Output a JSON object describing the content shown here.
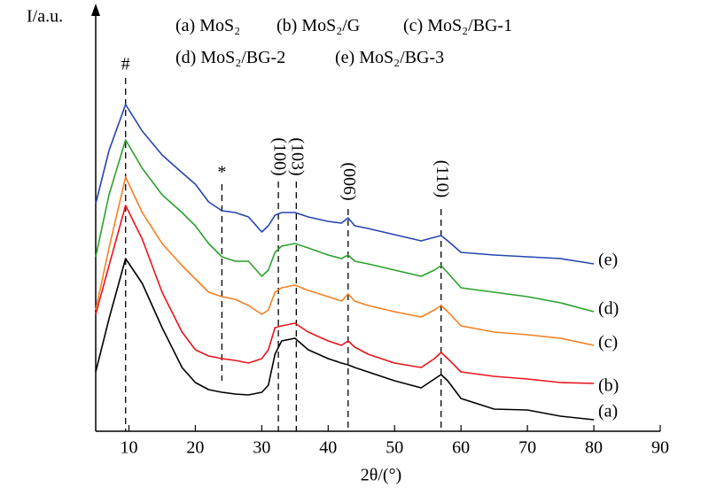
{
  "chart_data": {
    "type": "line",
    "ylabel": "I/a.u.",
    "xlabel": "2θ/(°)",
    "xlim": [
      5,
      90
    ],
    "xticks": [
      10,
      20,
      30,
      40,
      50,
      60,
      70,
      80,
      90
    ],
    "ylim": [
      0,
      477
    ],
    "x": [
      5,
      7,
      9.5,
      12,
      15,
      18,
      20,
      22,
      24,
      26,
      28,
      30,
      31,
      32,
      33,
      35,
      37,
      40,
      42,
      43,
      44,
      46,
      50,
      54,
      56,
      57,
      58,
      60,
      65,
      70,
      75,
      80
    ],
    "series": [
      {
        "label": "(a)",
        "name": "MoS₂",
        "color": "#000000",
        "values": [
          67,
          127,
          195,
          167,
          117,
          72,
          55,
          47,
          44,
          42,
          41,
          44,
          52,
          87,
          102,
          105,
          92,
          82,
          77,
          75,
          72,
          67,
          57,
          49,
          59,
          64,
          57,
          37,
          25,
          24,
          17,
          13
        ]
      },
      {
        "label": "(b)",
        "name": "MoS₂/G",
        "color": "#e8141e",
        "values": [
          132,
          187,
          255,
          217,
          157,
          112,
          92,
          85,
          82,
          80,
          77,
          82,
          92,
          117,
          119,
          122,
          112,
          102,
          97,
          102,
          95,
          87,
          77,
          72,
          82,
          89,
          82,
          67,
          62,
          59,
          55,
          54
        ]
      },
      {
        "label": "(c)",
        "name": "MoS₂/BG-1",
        "color": "#f57f20",
        "values": [
          137,
          207,
          287,
          247,
          212,
          187,
          172,
          157,
          152,
          149,
          142,
          132,
          137,
          157,
          162,
          165,
          159,
          152,
          147,
          155,
          147,
          142,
          135,
          129,
          137,
          142,
          135,
          119,
          112,
          109,
          105,
          97
        ]
      },
      {
        "label": "(d)",
        "name": "MoS₂/BG-2",
        "color": "#2ca02c",
        "values": [
          197,
          267,
          329,
          297,
          267,
          247,
          232,
          212,
          197,
          192,
          192,
          175,
          182,
          202,
          209,
          212,
          207,
          199,
          195,
          199,
          192,
          189,
          182,
          175,
          182,
          187,
          179,
          162,
          157,
          152,
          145,
          135
        ]
      },
      {
        "label": "(e)",
        "name": "MoS₂/BG-3",
        "color": "#2545b0",
        "values": [
          257,
          317,
          369,
          339,
          312,
          292,
          279,
          259,
          249,
          247,
          242,
          225,
          232,
          244,
          247,
          247,
          242,
          237,
          235,
          241,
          232,
          229,
          222,
          215,
          219,
          221,
          215,
          202,
          199,
          197,
          195,
          189
        ]
      }
    ],
    "annotations": [
      {
        "x": 9.5,
        "text": "#"
      },
      {
        "x": 24,
        "text": "*"
      },
      {
        "x": 32.5,
        "text": "(100)"
      },
      {
        "x": 35.2,
        "text": "(103)"
      },
      {
        "x": 43,
        "text": "(006)"
      },
      {
        "x": 57,
        "text": "(110)"
      }
    ]
  }
}
